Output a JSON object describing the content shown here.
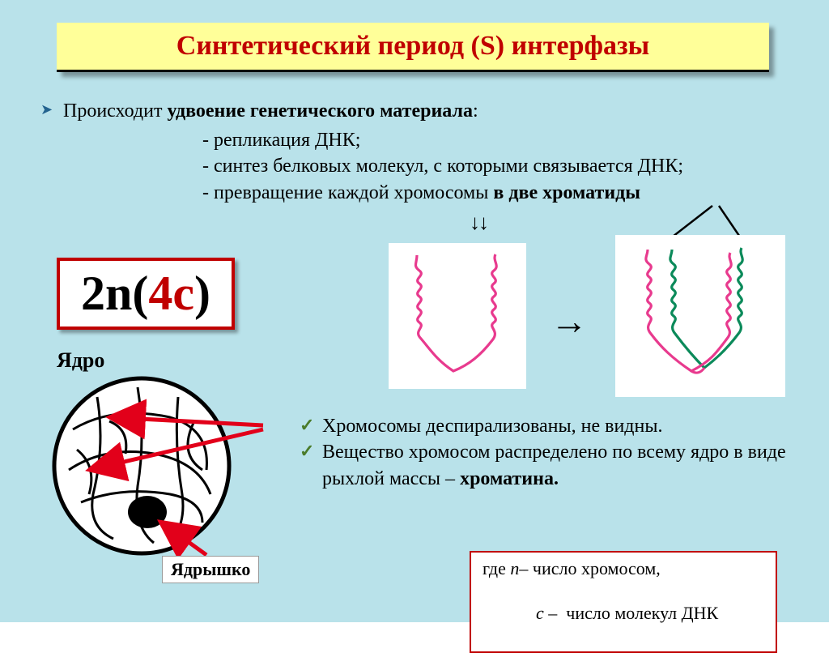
{
  "colors": {
    "slide_bg": "#b9e2ea",
    "title_bg": "#ffff99",
    "title_text": "#c00000",
    "body_text": "#000000",
    "bullet_arrow": "#23638f",
    "check_mark": "#4a7b2a",
    "formula_border": "#c00000",
    "formula_bg": "#ffffff",
    "formula_black": "#000000",
    "formula_red": "#c00000",
    "legend_border": "#c00000",
    "red_arrow": "#e2001a",
    "chrom_pink": "#e83a8e",
    "chrom_green": "#0b8a5a",
    "nucleus_stroke": "#000000"
  },
  "title": "Синтетический  период  (S)  интерфазы",
  "main_bullet": {
    "lead": "Происходит ",
    "bold": "удвоение генетического материала",
    "tail": ":"
  },
  "sub_bullets": [
    "- репликация ДНК;",
    "- синтез белковых молекул, с которыми связывается ДНК;"
  ],
  "sub_bullet_last": {
    "lead": "- превращение каждой хромосомы ",
    "bold": "в две хроматиды"
  },
  "formula": {
    "p1": "2n(",
    "p2": "4c",
    "p3": ")"
  },
  "nucleus_label": "Ядро",
  "nucleolus_label": "Ядрышко",
  "check_bullets": [
    {
      "parts": [
        {
          "t": "Хромосомы деспирализованы, не видны.",
          "b": false
        }
      ]
    },
    {
      "parts": [
        {
          "t": "Вещество хромосом распределено по всему ядро в виде рыхлой массы – ",
          "b": false
        },
        {
          "t": "хроматина.",
          "b": true
        }
      ]
    }
  ],
  "legend": {
    "line1": {
      "pre": "где ",
      "var": "n",
      "post": "– число  хромосом,"
    },
    "line2": {
      "pre": "      ",
      "var": "c",
      "post": " –  число молекул ДНК"
    }
  },
  "arrows": {
    "down": "↓↓",
    "right": "→"
  },
  "typography": {
    "title_fontsize": 34,
    "body_fontsize": 24,
    "formula_fontsize": 60,
    "legend_fontsize": 22
  }
}
